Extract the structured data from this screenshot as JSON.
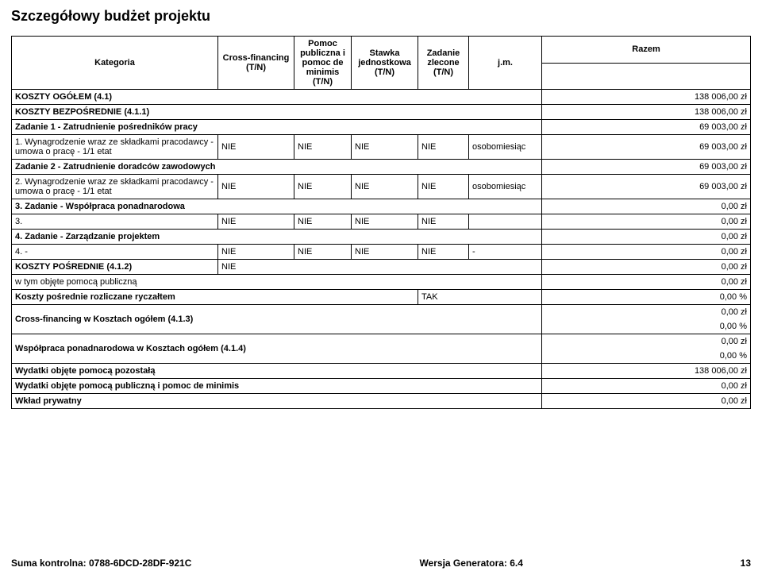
{
  "title": "Szczegółowy budżet projektu",
  "headers": {
    "kategoria": "Kategoria",
    "cross_financing": "Cross-financing (T/N)",
    "pomoc": "Pomoc publiczna i pomoc de minimis (T/N)",
    "stawka": "Stawka jednostkowa (T/N)",
    "zadanie_zlecone": "Zadanie zlecone (T/N)",
    "jm": "j.m.",
    "razem": "Razem"
  },
  "rows": {
    "koszty_ogolem": {
      "label": "KOSZTY OGÓŁEM (4.1)",
      "value": "138 006,00 zł"
    },
    "koszty_bezposrednie": {
      "label": "KOSZTY BEZPOŚREDNIE (4.1.1)",
      "value": "138 006,00 zł"
    },
    "zadanie1": {
      "label": "Zadanie 1 - Zatrudnienie pośredników pracy",
      "value": "69 003,00 zł"
    },
    "r1": {
      "label": "1. Wynagrodzenie wraz ze składkami pracodawcy - umowa o pracę - 1/1 etat",
      "cf": "NIE",
      "pom": "NIE",
      "staw": "NIE",
      "zad": "NIE",
      "jm": "osobomiesiąc",
      "value": "69 003,00 zł"
    },
    "zadanie2": {
      "label": "Zadanie 2 - Zatrudnienie doradców zawodowych",
      "value": "69 003,00 zł"
    },
    "r2": {
      "label": "2. Wynagrodzenie wraz ze składkami pracodawcy - umowa o pracę - 1/1 etat",
      "cf": "NIE",
      "pom": "NIE",
      "staw": "NIE",
      "zad": "NIE",
      "jm": "osobomiesiąc",
      "value": "69 003,00 zł"
    },
    "zadanie3": {
      "label": "3. Zadanie - Współpraca ponadnarodowa",
      "value": "0,00 zł"
    },
    "r3": {
      "label": "3.",
      "cf": "NIE",
      "pom": "NIE",
      "staw": "NIE",
      "zad": "NIE",
      "jm": "",
      "value": "0,00 zł"
    },
    "zadanie4": {
      "label": "4. Zadanie - Zarządzanie projektem",
      "value": "0,00 zł"
    },
    "r4": {
      "label": "4. -",
      "cf": "NIE",
      "pom": "NIE",
      "staw": "NIE",
      "zad": "NIE",
      "jm": "-",
      "value": "0,00 zł"
    },
    "koszty_posrednie": {
      "label": "KOSZTY POŚREDNIE (4.1.2)",
      "cf": "NIE",
      "value": "0,00 zł"
    },
    "w_tym": {
      "label": "w tym objęte pomocą publiczną",
      "value": "0,00 zł"
    },
    "ryczalt": {
      "label": "Koszty pośrednie rozliczane ryczałtem",
      "tak": "TAK",
      "value": "0,00 %"
    },
    "cf_ogolem": {
      "label": "Cross-financing w Kosztach ogółem (4.1.3)",
      "value1": "0,00 zł",
      "value2": "0,00 %"
    },
    "wspolpraca": {
      "label": "Współpraca ponadnarodowa w Kosztach ogółem (4.1.4)",
      "value1": "0,00 zł",
      "value2": "0,00 %"
    },
    "wydatki_pozostala": {
      "label": "Wydatki objęte pomocą pozostałą",
      "value": "138 006,00 zł"
    },
    "wydatki_deminimis": {
      "label": "Wydatki objęte pomocą publiczną i pomoc de minimis",
      "value": "0,00 zł"
    },
    "wklad": {
      "label": "Wkład prywatny",
      "value": "0,00 zł"
    }
  },
  "footer": {
    "suma": "Suma kontrolna: 0788-6DCD-28DF-921C",
    "wersja": "Wersja Generatora: 6.4",
    "page": "13"
  }
}
